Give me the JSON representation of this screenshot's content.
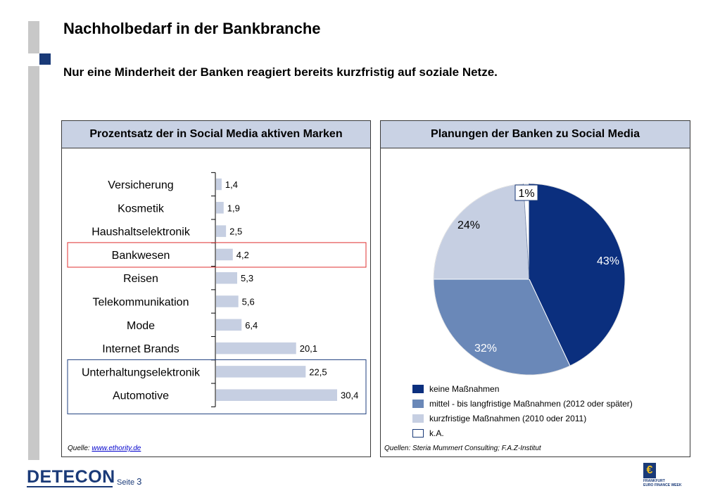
{
  "header": {
    "title": "Nachholbedarf in der Bankbranche",
    "subtitle": "Nur eine Minderheit der Banken reagiert bereits kurzfristig auf soziale Netze."
  },
  "colors": {
    "header_fill": "#c9d2e4",
    "bar_fill": "#c6cfe2",
    "highlight_red": "#e03030",
    "highlight_blue": "#1f3f7f",
    "pie_dark": "#0b2f7e",
    "pie_mid": "#6a88b8",
    "pie_light": "#c6cfe2",
    "pie_white": "#ffffff"
  },
  "left_panel": {
    "header": "Prozentsatz der in Social Media aktiven Marken",
    "source_label": "Quelle: ",
    "source_link": "www.ethority.de"
  },
  "right_panel": {
    "header": "Planungen der Banken zu Social Media",
    "source": "Quellen: Steria Mummert Consulting; F.A.Z-Institut"
  },
  "chart_data": [
    {
      "type": "bar",
      "orientation": "horizontal",
      "title": "Prozentsatz der in Social Media aktiven Marken",
      "categories": [
        "Versicherung",
        "Kosmetik",
        "Haushaltselektronik",
        "Bankwesen",
        "Reisen",
        "Telekommunikation",
        "Mode",
        "Internet Brands",
        "Unterhaltungselektronik",
        "Automotive"
      ],
      "values": [
        1.4,
        1.9,
        2.5,
        4.2,
        5.3,
        5.6,
        6.4,
        20.1,
        22.5,
        30.4
      ],
      "value_labels": [
        "1,4",
        "1,9",
        "2,5",
        "4,2",
        "5,3",
        "5,6",
        "6,4",
        "20,1",
        "22,5",
        "30,4"
      ],
      "highlight_red": "Bankwesen",
      "highlight_blue": [
        "Unterhaltungselektronik",
        "Automotive"
      ],
      "grid": false
    },
    {
      "type": "pie",
      "title": "Planungen der Banken zu Social Media",
      "slices": [
        {
          "label": "keine Maßnahmen",
          "value": 43,
          "value_label": "43%",
          "color": "#0b2f7e"
        },
        {
          "label": "mittel - bis langfristige Maßnahmen (2012 oder später)",
          "value": 32,
          "value_label": "32%",
          "color": "#6a88b8"
        },
        {
          "label": "kurzfristige Maßnahmen (2010 oder 2011)",
          "value": 24,
          "value_label": "24%",
          "color": "#c6cfe2"
        },
        {
          "label": "k.A.",
          "value": 1,
          "value_label": "1%",
          "color": "#ffffff"
        }
      ],
      "legend_position": "bottom"
    }
  ],
  "footer": {
    "logo": "DETECON",
    "page_label": "Seite ",
    "page_number": "3",
    "right_logo_lines": [
      "FRANKFURT",
      "EURO FINANCE WEEK"
    ]
  }
}
